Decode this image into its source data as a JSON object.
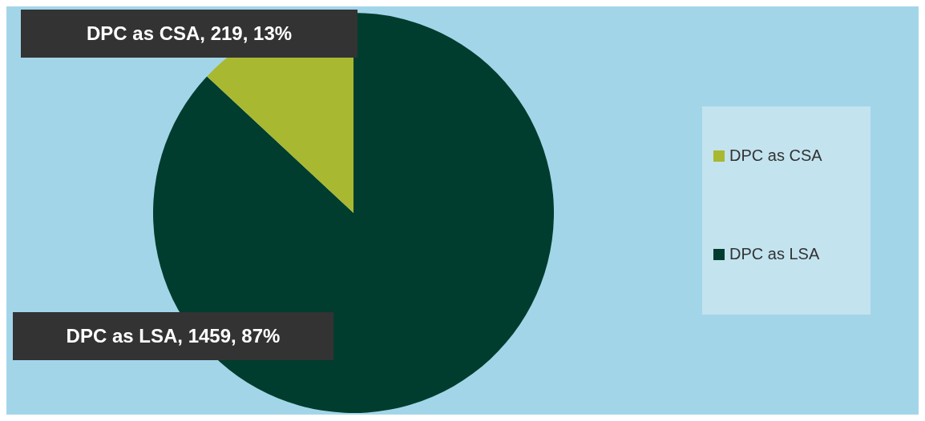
{
  "chart_data": {
    "type": "pie",
    "categories": [
      "DPC as LSA",
      "DPC as CSA"
    ],
    "values": [
      1459,
      219
    ],
    "colors": [
      "#003d2e",
      "#a8b830"
    ],
    "value_labels": [
      "DPC as LSA, 1459, 87%",
      "DPC as CSA, 219, 13%"
    ],
    "legend": "right"
  }
}
